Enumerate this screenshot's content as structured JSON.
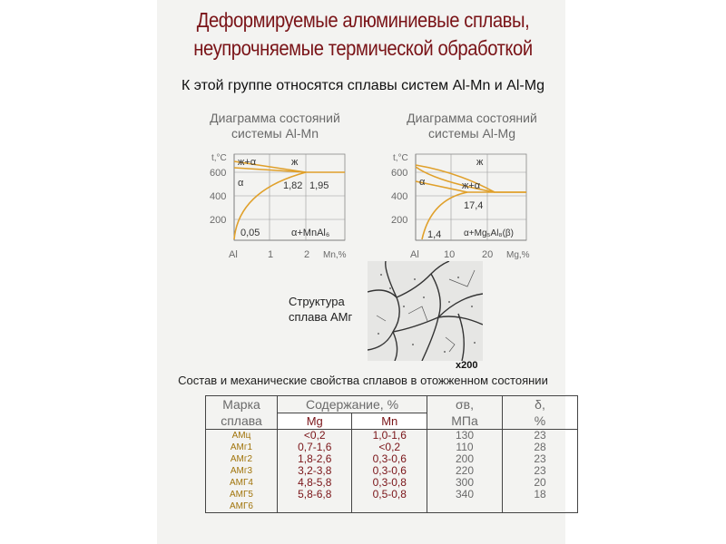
{
  "title": {
    "line1": "Деформируемые алюминиевые сплавы,",
    "line2": "неупрочняемые термической обработкой"
  },
  "subtitle": "К этой группе относятся сплавы систем Al-Mn и Al-Mg",
  "diagram_mn": {
    "title_line1": "Диаграмма состояний",
    "title_line2": "системы Al-Mn",
    "y_axis_label": "t,°C",
    "y_ticks": [
      "600",
      "400",
      "200"
    ],
    "x_ticks": [
      "Al",
      "1",
      "2",
      "Mn,%"
    ],
    "phase_liquid_alpha": "ж+α",
    "phase_liquid": "ж",
    "phase_alpha": "α",
    "val_182": "1,82",
    "val_195": "1,95",
    "val_005": "0,05",
    "phase_alpha_mnal": "α+MnAl₆"
  },
  "diagram_mg": {
    "title_line1": "Диаграмма состояний",
    "title_line2": "системы Al-Mg",
    "y_axis_label": "t,°C",
    "y_ticks": [
      "600",
      "400",
      "200"
    ],
    "x_ticks": [
      "Al",
      "10",
      "20",
      "Mg,%"
    ],
    "phase_liquid": "ж",
    "phase_alpha": "α",
    "phase_liquid_alpha": "ж+α",
    "val_174": "17,4",
    "val_14": "1,4",
    "phase_alpha_mgal": "α+Mg₅Al₈(β)"
  },
  "micrograph": {
    "caption_line1": "Структура",
    "caption_line2": "сплава АМг",
    "magnification": "x200"
  },
  "table": {
    "caption": "Состав и механические свойства сплавов в отожженном состоянии",
    "header_grade_line1": "Марка",
    "header_grade_line2": "сплава",
    "header_content": "Содержание, %",
    "header_mg": "Mg",
    "header_mn": "Mn",
    "header_sigma_line1": "σв,",
    "header_sigma_line2": "МПа",
    "header_delta_line1": "δ,",
    "header_delta_line2": "%",
    "rows": [
      {
        "grade": "АМц",
        "mg": "<0,2",
        "mn": "1,0-1,6",
        "sigma": "130",
        "delta": "23"
      },
      {
        "grade": "АМг1",
        "mg": "0,7-1,6",
        "mn": "<0,2",
        "sigma": "110",
        "delta": "28"
      },
      {
        "grade": "АМг2",
        "mg": "1,8-2,6",
        "mn": "0,3-0,6",
        "sigma": "200",
        "delta": "23"
      },
      {
        "grade": "АМг3",
        "mg": "3,2-3,8",
        "mn": "0,3-0,6",
        "sigma": "220",
        "delta": "23"
      },
      {
        "grade": "АМГ4",
        "mg": "4,8-5,8",
        "mn": "0,3-0,8",
        "sigma": "300",
        "delta": "20"
      },
      {
        "grade": "АМГ5",
        "mg": "5,8-6,8",
        "mn": "0,5-0,8",
        "sigma": "340",
        "delta": "18"
      },
      {
        "grade": "АМГ6",
        "mg": "",
        "mn": "",
        "sigma": "",
        "delta": ""
      }
    ]
  },
  "colors": {
    "title": "#7a1418",
    "curve": "#e0a02a",
    "axis_text": "#6a6a6a",
    "slide_bg": "#f3f3f1"
  }
}
